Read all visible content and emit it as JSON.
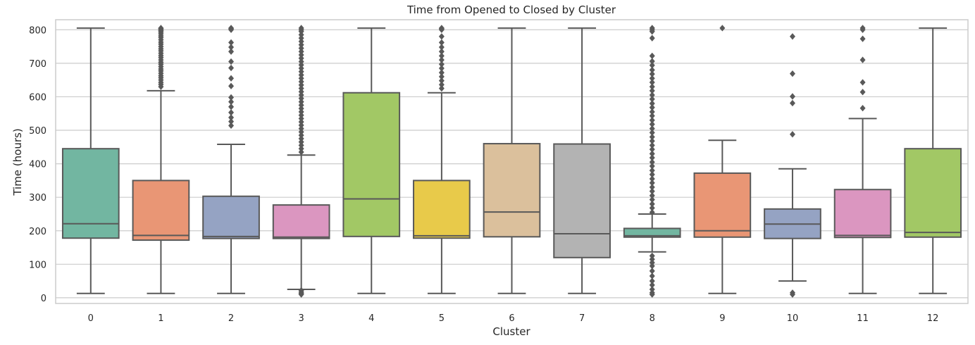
{
  "chart_data": {
    "type": "box",
    "title": "Time from Opened to Closed by Cluster",
    "xlabel": "Cluster",
    "ylabel": "Time (hours)",
    "ylim": [
      -17,
      830
    ],
    "yticks": [
      0,
      100,
      200,
      300,
      400,
      500,
      600,
      700,
      800
    ],
    "grid": "horizontal",
    "legend": "none",
    "categories": [
      "0",
      "1",
      "2",
      "3",
      "4",
      "5",
      "6",
      "7",
      "8",
      "9",
      "10",
      "11",
      "12"
    ],
    "colors": [
      "#72b6a1",
      "#e99675",
      "#95a3c3",
      "#db96c0",
      "#a2c865",
      "#e8ca4a",
      "#dbc09c",
      "#b3b3b3",
      "#72b6a1",
      "#e99675",
      "#95a3c3",
      "#db96c0",
      "#a2c865"
    ],
    "boxes": [
      {
        "whisker_low": 13,
        "q1": 178,
        "median": 221,
        "q3": 445,
        "whisker_high": 805,
        "outliers": []
      },
      {
        "whisker_low": 13,
        "q1": 172,
        "median": 186,
        "q3": 350,
        "whisker_high": 618,
        "outliers": [
          805,
          803,
          800,
          797,
          793,
          788,
          782,
          777,
          770,
          763,
          757,
          750,
          743,
          737,
          730,
          723,
          717,
          710,
          703,
          697,
          690,
          683,
          677,
          670,
          663,
          657,
          650,
          643,
          637,
          630
        ]
      },
      {
        "whisker_low": 13,
        "q1": 177,
        "median": 183,
        "q3": 303,
        "whisker_high": 458,
        "outliers": [
          805,
          803,
          800,
          762,
          748,
          735,
          705,
          686,
          655,
          632,
          598,
          585,
          570,
          553,
          538,
          526,
          514
        ]
      },
      {
        "whisker_low": 25,
        "q1": 177,
        "median": 181,
        "q3": 277,
        "whisker_high": 426,
        "outliers": [
          805,
          800,
          795,
          785,
          775,
          765,
          755,
          745,
          735,
          725,
          715,
          705,
          695,
          685,
          675,
          665,
          655,
          645,
          635,
          625,
          615,
          605,
          595,
          585,
          575,
          565,
          555,
          545,
          535,
          525,
          515,
          505,
          495,
          485,
          475,
          465,
          455,
          445,
          435,
          22,
          17,
          13,
          10
        ]
      },
      {
        "whisker_low": 13,
        "q1": 183,
        "median": 295,
        "q3": 612,
        "whisker_high": 805,
        "outliers": []
      },
      {
        "whisker_low": 13,
        "q1": 178,
        "median": 185,
        "q3": 350,
        "whisker_high": 612,
        "outliers": [
          805,
          803,
          800,
          780,
          762,
          748,
          735,
          722,
          710,
          697,
          685,
          672,
          660,
          648,
          636,
          625
        ]
      },
      {
        "whisker_low": 13,
        "q1": 182,
        "median": 256,
        "q3": 460,
        "whisker_high": 805,
        "outliers": []
      },
      {
        "whisker_low": 13,
        "q1": 120,
        "median": 191,
        "q3": 459,
        "whisker_high": 805,
        "outliers": []
      },
      {
        "whisker_low": 137,
        "q1": 181,
        "median": 185,
        "q3": 207,
        "whisker_high": 250,
        "outliers": [
          805,
          800,
          795,
          775,
          722,
          706,
          694,
          680,
          668,
          655,
          643,
          630,
          618,
          605,
          593,
          580,
          568,
          555,
          543,
          530,
          518,
          505,
          493,
          480,
          468,
          455,
          443,
          430,
          418,
          405,
          393,
          380,
          368,
          355,
          343,
          330,
          318,
          305,
          293,
          280,
          268,
          255,
          125,
          115,
          105,
          95,
          80,
          65,
          50,
          38,
          25,
          15,
          10
        ]
      },
      {
        "whisker_low": 13,
        "q1": 181,
        "median": 200,
        "q3": 372,
        "whisker_high": 470,
        "outliers": [
          805
        ]
      },
      {
        "whisker_low": 50,
        "q1": 177,
        "median": 220,
        "q3": 265,
        "whisker_high": 385,
        "outliers": [
          780,
          669,
          601,
          581,
          488,
          15,
          10
        ]
      },
      {
        "whisker_low": 13,
        "q1": 180,
        "median": 186,
        "q3": 323,
        "whisker_high": 535,
        "outliers": [
          805,
          800,
          773,
          710,
          643,
          614,
          566
        ]
      },
      {
        "whisker_low": 13,
        "q1": 181,
        "median": 195,
        "q3": 445,
        "whisker_high": 805,
        "outliers": []
      }
    ]
  }
}
